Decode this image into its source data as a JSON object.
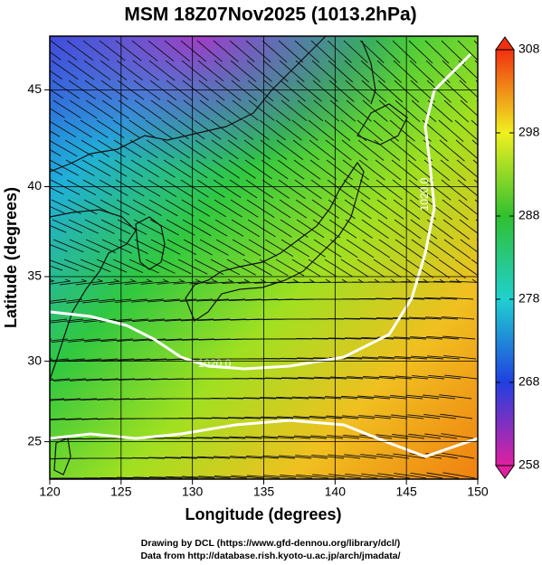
{
  "chart_data": {
    "type": "map",
    "title": "MSM 18Z07Nov2025 (1013.2hPa)",
    "x_label": "Longitude (degrees)",
    "y_label": "Latitude  (degrees)",
    "projection": "mercator",
    "xlim": [
      120,
      150
    ],
    "xticks": [
      120,
      125,
      130,
      135,
      140,
      145,
      150
    ],
    "ylim": [
      22.6,
      47.6
    ],
    "yticks": [
      25,
      30,
      35,
      40,
      45
    ],
    "grid": true,
    "colorbar": {
      "lim": [
        258,
        308
      ],
      "ticks": [
        258,
        268,
        278,
        288,
        298,
        308
      ],
      "colors": [
        "#e020a0",
        "#2040e0",
        "#20d0d0",
        "#30c030",
        "#f0f020",
        "#f03010"
      ]
    },
    "annotations": [
      "1020.0",
      "1020.0"
    ],
    "footer": [
      "Drawing by DCL (https://www.gfd-dennou.org/library/dcl/)",
      "Data from http://database.rish.kyoto-u.ac.jp/arch/jmadata/"
    ]
  }
}
